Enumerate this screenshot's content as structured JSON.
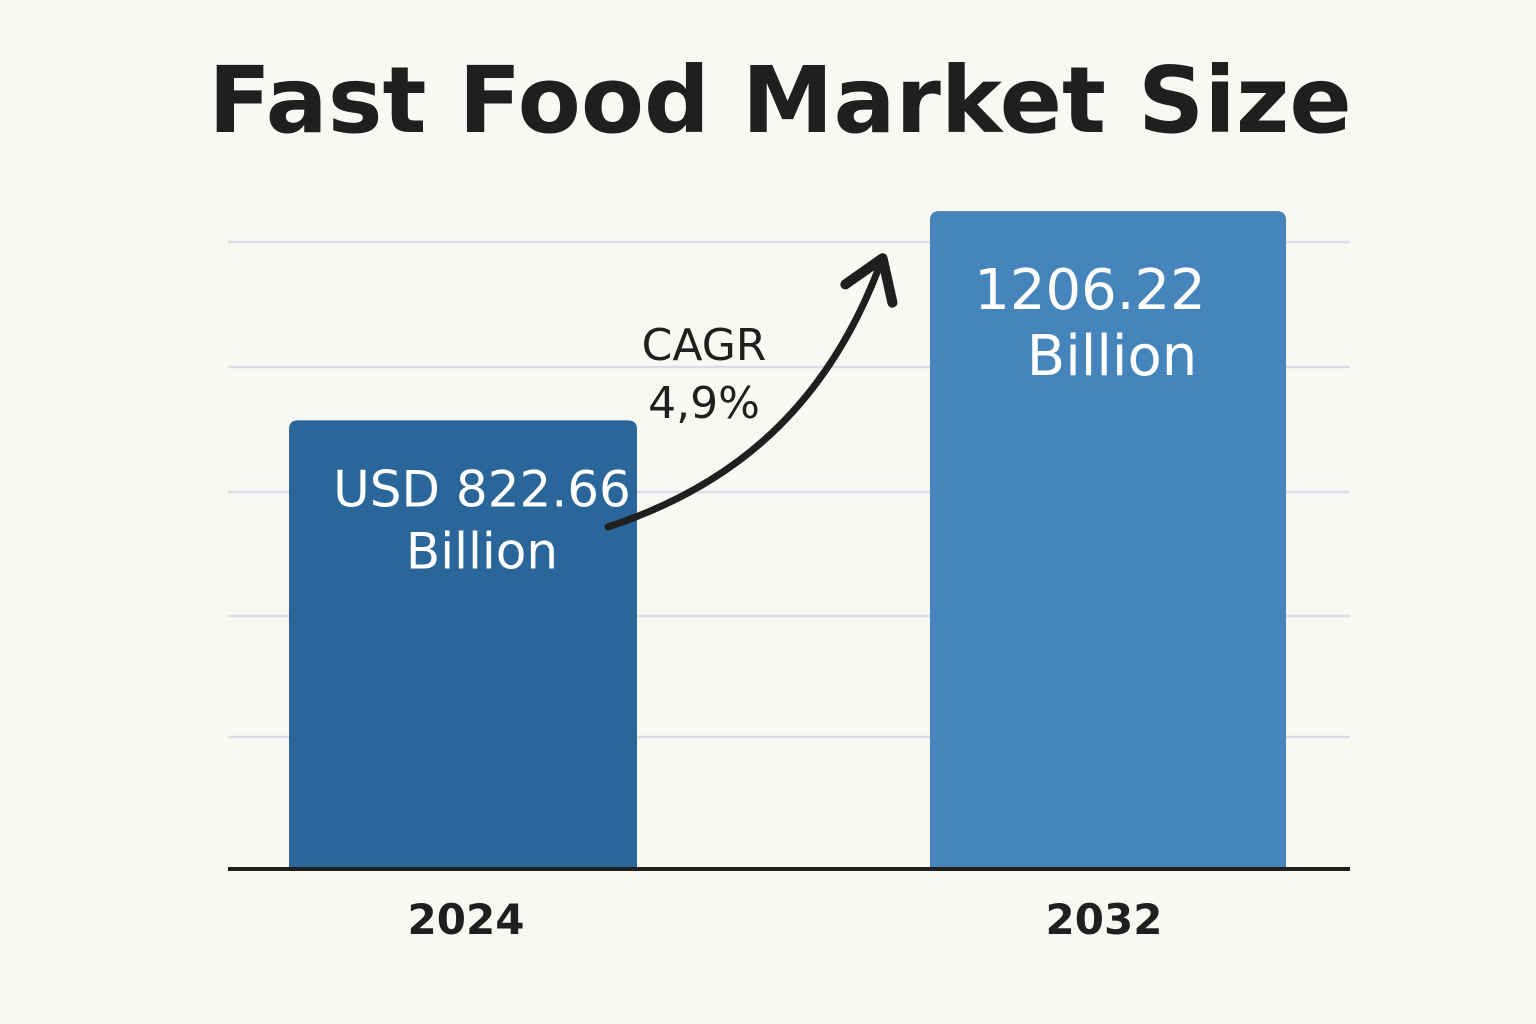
{
  "chart_data": {
    "type": "bar",
    "title": "Fast Food Market Size",
    "categories": [
      "2024",
      "2032"
    ],
    "values": [
      822.66,
      1206.22
    ],
    "value_labels": [
      [
        "USD 822.66",
        "Billion"
      ],
      [
        "1206.22",
        "Billion"
      ]
    ],
    "ylim": [
      0,
      1300
    ],
    "grid": true,
    "legend": "none",
    "annotation": {
      "lines": [
        "CAGR",
        "4,9%"
      ],
      "arrow": "from 2024 bar to 2032 bar"
    },
    "colors": {
      "bar_2024": "#2a6699",
      "bar_2032": "#4585bb",
      "grid": "#d9dde5",
      "axis": "#1f1f1f",
      "background": "#faf8f3"
    }
  }
}
